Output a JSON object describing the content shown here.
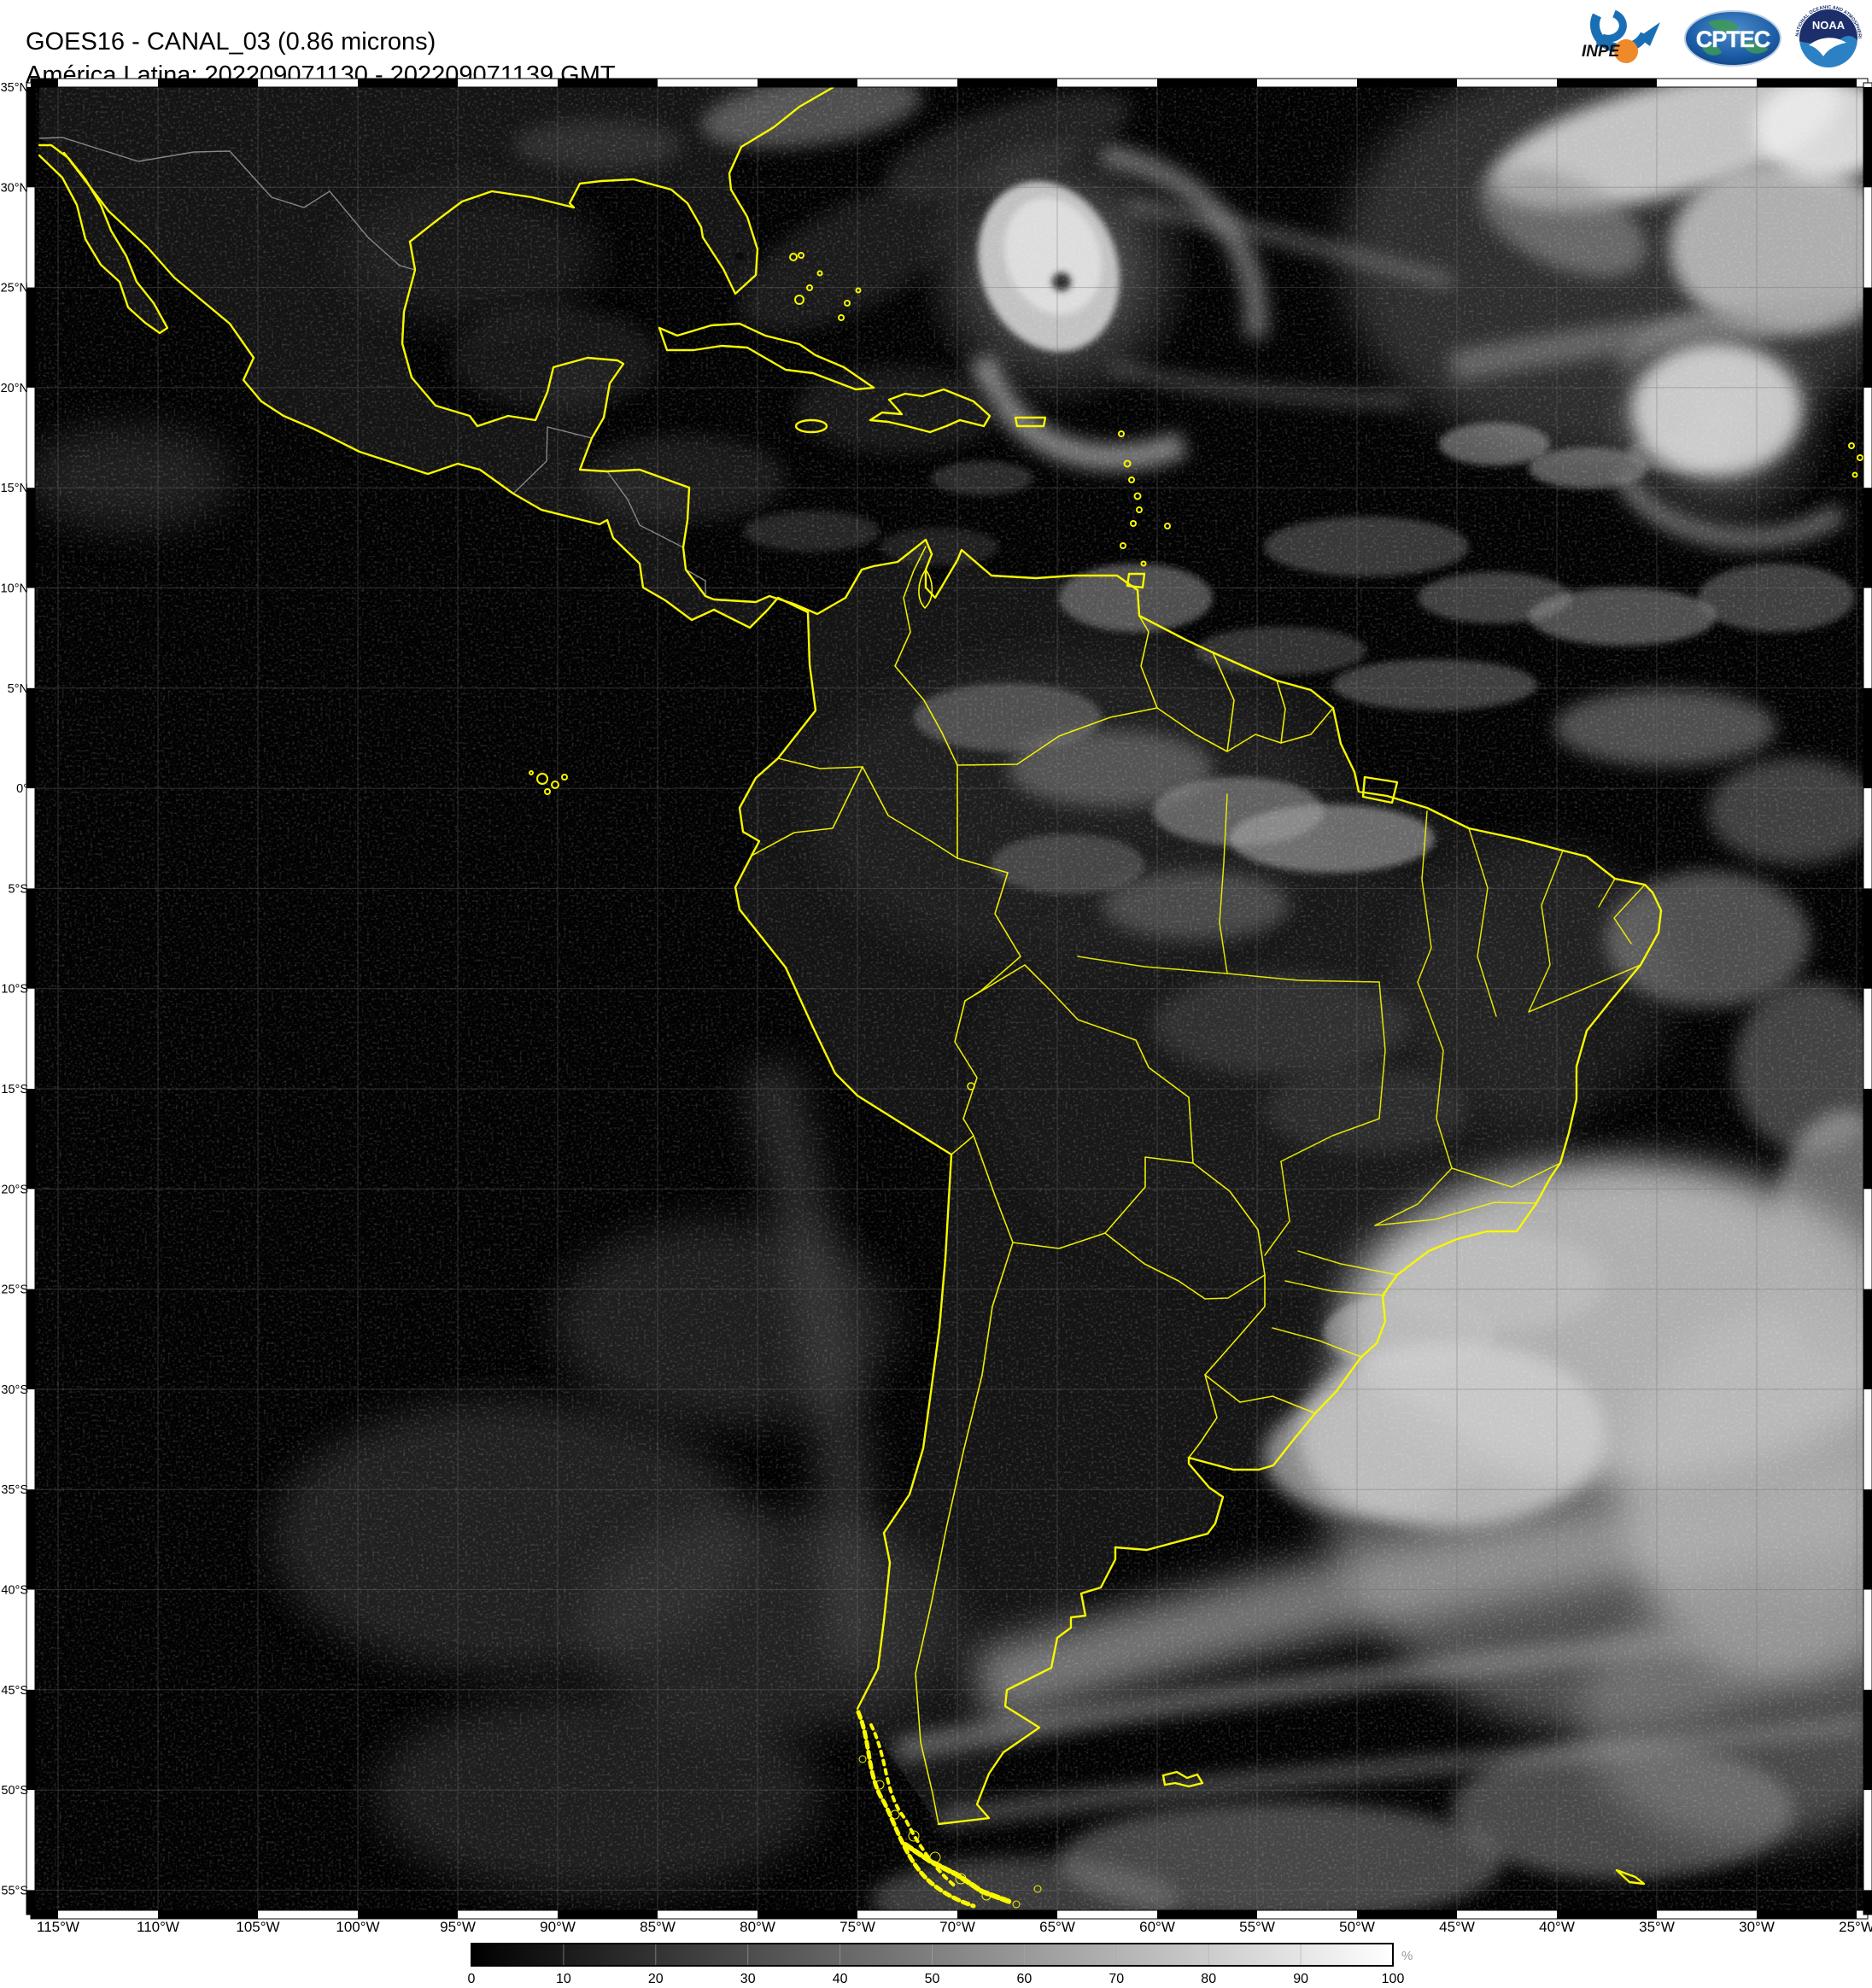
{
  "header": {
    "line1": "GOES16 - CANAL_03 (0.86 microns)",
    "line2": "América Latina: 202209071130 - 202209071139 GMT"
  },
  "logos": {
    "inpe_label": "INPE",
    "cptec_label": "CPTEC",
    "noaa_label": "NOAA",
    "noaa_ring_top": "NATIONAL OCEANIC AND ATMOSPHERIC ADMINISTRATION",
    "noaa_ring_bottom": "U.S. DEPARTMENT OF COMMERCE"
  },
  "map": {
    "satellite": "GOES16",
    "channel": "CANAL_03",
    "wavelength_microns": "0.86",
    "region": "América Latina",
    "time_start_gmt": "202209071130",
    "time_end_gmt": "202209071139",
    "coastline_color": "#f8f800",
    "background_color": "#020202",
    "lat_labels": [
      "35°N",
      "30°N",
      "25°N",
      "20°N",
      "15°N",
      "10°N",
      "5°N",
      "0°",
      "5°S",
      "10°S",
      "15°S",
      "20°S",
      "25°S",
      "30°S",
      "35°S",
      "40°S",
      "45°S",
      "50°S",
      "55°S"
    ],
    "lon_labels": [
      "115°W",
      "110°W",
      "105°W",
      "100°W",
      "95°W",
      "90°W",
      "85°W",
      "80°W",
      "75°W",
      "70°W",
      "65°W",
      "60°W",
      "55°W",
      "50°W",
      "45°W",
      "40°W",
      "35°W",
      "30°W",
      "25°W"
    ]
  },
  "colorbar": {
    "ticks": [
      "0",
      "10",
      "20",
      "30",
      "40",
      "50",
      "60",
      "70",
      "80",
      "90",
      "100"
    ],
    "unit": "%",
    "min_color": "#000000",
    "max_color": "#ffffff"
  }
}
